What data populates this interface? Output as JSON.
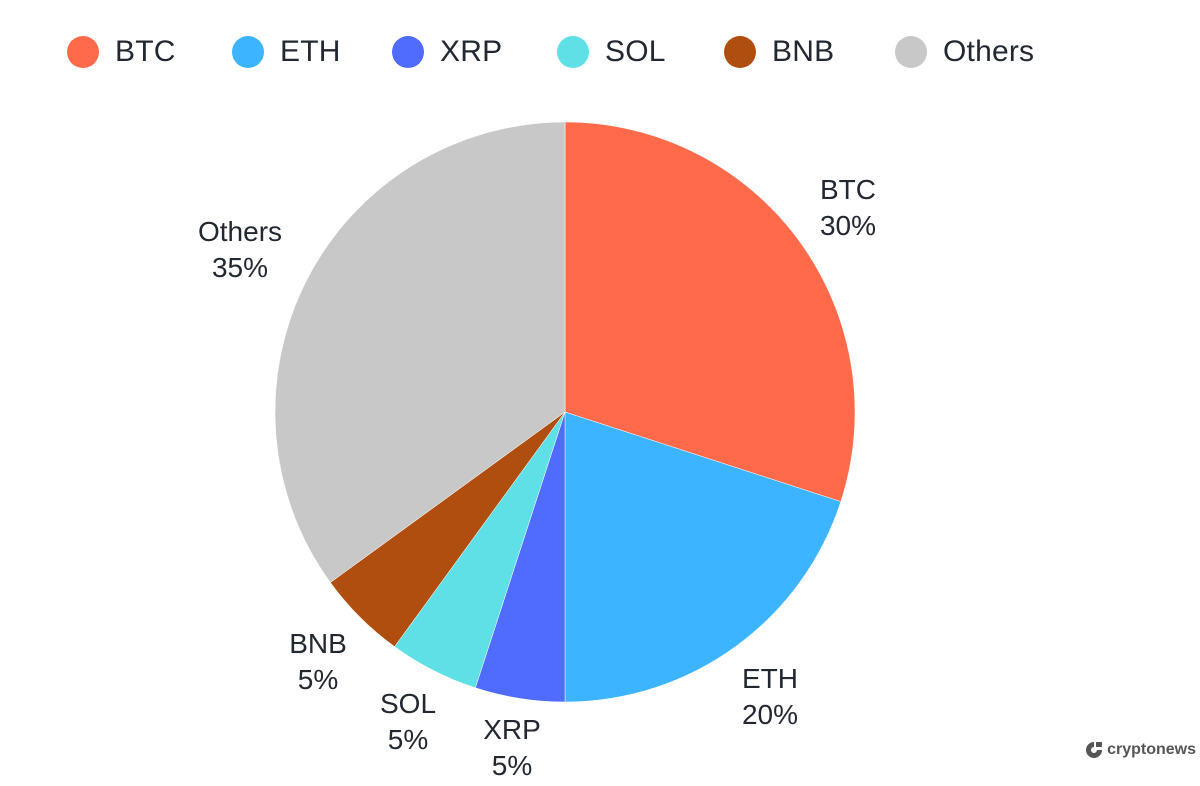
{
  "chart_data": {
    "type": "pie",
    "title": "",
    "categories": [
      "BTC",
      "ETH",
      "XRP",
      "SOL",
      "BNB",
      "Others"
    ],
    "values": [
      30,
      20,
      5,
      5,
      5,
      35
    ],
    "unit": "%",
    "colors": [
      "#ff6b4a",
      "#3db4ff",
      "#4f6cff",
      "#5ee0e6",
      "#b04e0f",
      "#c8c8c8"
    ],
    "start_angle": "12 o'clock",
    "direction": "clockwise",
    "legend_position": "top",
    "slice_labels": [
      {
        "name": "BTC",
        "pct": "30%"
      },
      {
        "name": "ETH",
        "pct": "20%"
      },
      {
        "name": "XRP",
        "pct": "5%"
      },
      {
        "name": "SOL",
        "pct": "5%"
      },
      {
        "name": "BNB",
        "pct": "5%"
      },
      {
        "name": "Others",
        "pct": "35%"
      }
    ]
  },
  "legend": [
    {
      "label": "BTC",
      "color": "#ff6b4a"
    },
    {
      "label": "ETH",
      "color": "#3db4ff"
    },
    {
      "label": "XRP",
      "color": "#4f6cff"
    },
    {
      "label": "SOL",
      "color": "#5ee0e6"
    },
    {
      "label": "BNB",
      "color": "#b04e0f"
    },
    {
      "label": "Others",
      "color": "#c8c8c8"
    }
  ],
  "watermark": {
    "text": "cryptonews"
  }
}
